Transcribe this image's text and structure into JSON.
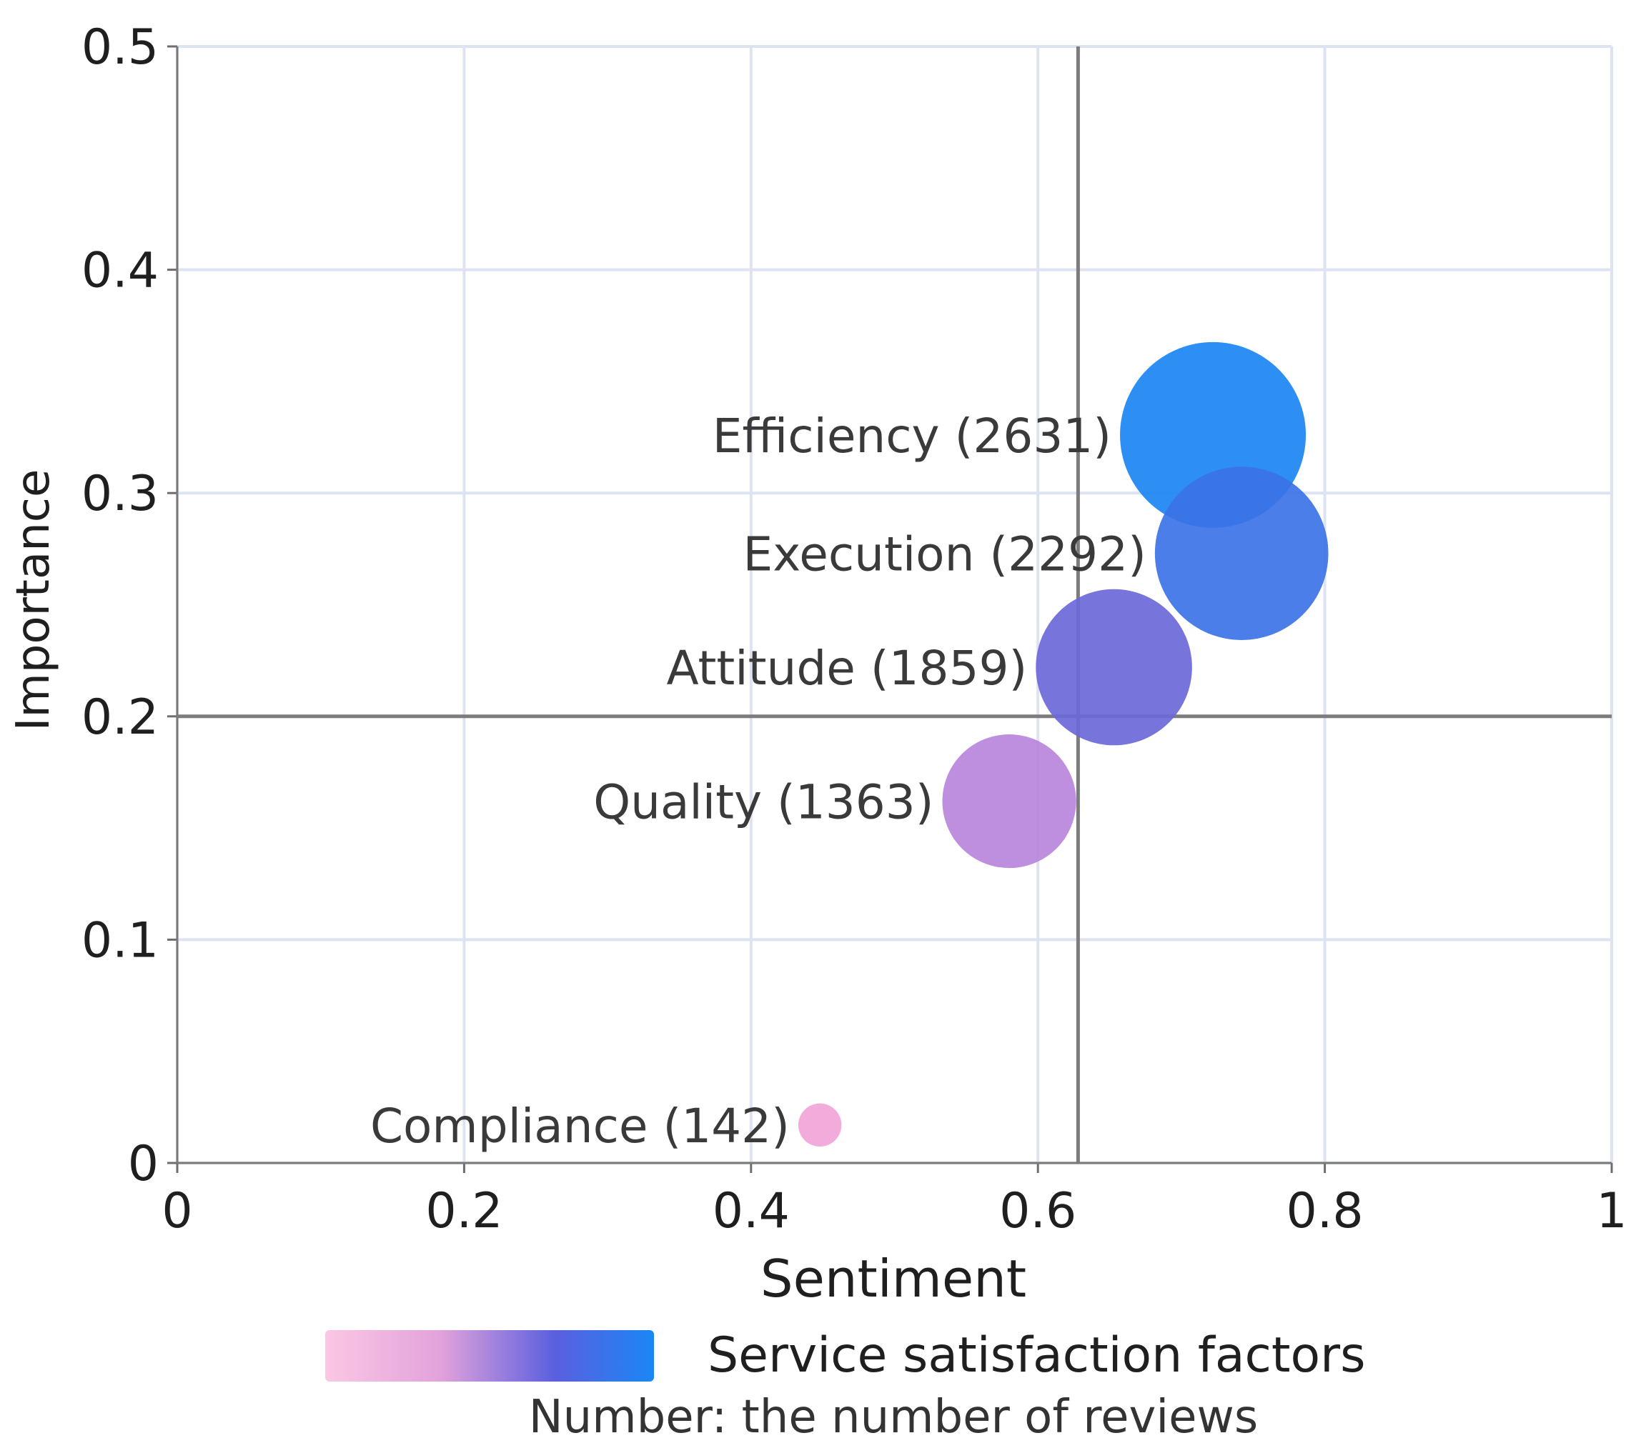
{
  "chart_data": {
    "type": "scatter",
    "subtype": "bubble",
    "xlabel": "Sentiment",
    "ylabel": "Importance",
    "xlim": [
      0,
      1
    ],
    "ylim": [
      0,
      0.5
    ],
    "x_ticks": [
      0,
      0.2,
      0.4,
      0.6,
      0.8,
      1
    ],
    "y_ticks": [
      0,
      0.1,
      0.2,
      0.3,
      0.4,
      0.5
    ],
    "x_tick_labels": [
      "0",
      "0.2",
      "0.4",
      "0.6",
      "0.8",
      "1"
    ],
    "y_tick_labels": [
      "0",
      "0.1",
      "0.2",
      "0.3",
      "0.4",
      "0.5"
    ],
    "grid": true,
    "reference_lines": {
      "x": 0.628,
      "y": 0.2
    },
    "legend": {
      "title": "Service satisfaction factors",
      "note": "Number: the number of reviews",
      "gradient_colors": [
        "#fbc7e4",
        "#e2a2db",
        "#5a5fdf",
        "#1a87f5"
      ],
      "position": "bottom"
    },
    "series": [
      {
        "name": "Efficiency",
        "label": "Efficiency (2631)",
        "x": 0.722,
        "y": 0.326,
        "size": 2631,
        "color": "#1b86f3"
      },
      {
        "name": "Execution",
        "label": "Execution (2292)",
        "x": 0.742,
        "y": 0.273,
        "size": 2292,
        "color": "#3c73e6"
      },
      {
        "name": "Attitude",
        "label": "Attitude (1859)",
        "x": 0.653,
        "y": 0.222,
        "size": 1859,
        "color": "#6b68d9"
      },
      {
        "name": "Quality",
        "label": "Quality (1363)",
        "x": 0.58,
        "y": 0.162,
        "size": 1363,
        "color": "#b884dc"
      },
      {
        "name": "Compliance",
        "label": "Compliance (142)",
        "x": 0.448,
        "y": 0.017,
        "size": 142,
        "color": "#f1a5d8"
      }
    ]
  }
}
